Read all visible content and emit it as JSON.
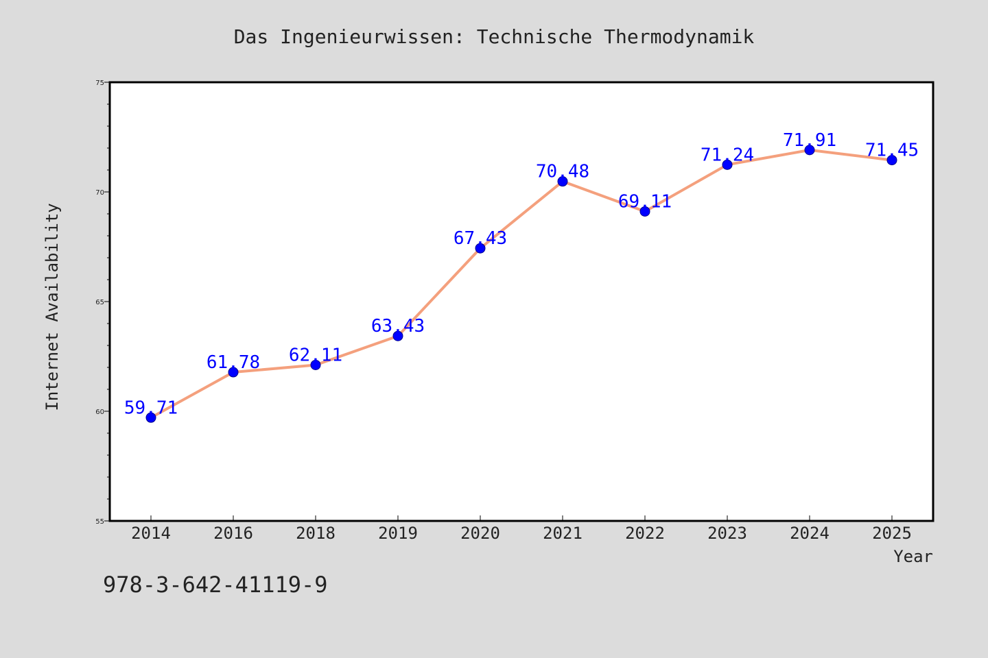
{
  "chart_data": {
    "type": "line",
    "title": "Das Ingenieurwissen: Technische Thermodynamik",
    "xlabel": "Year",
    "ylabel": "Internet Availability",
    "categories": [
      "2014",
      "2016",
      "2018",
      "2019",
      "2020",
      "2021",
      "2022",
      "2023",
      "2024",
      "2025"
    ],
    "values": [
      59.71,
      61.78,
      62.11,
      63.43,
      67.43,
      70.48,
      69.11,
      71.24,
      71.91,
      71.45
    ],
    "data_labels": [
      "59.71",
      "61.78",
      "62.11",
      "63.43",
      "67.43",
      "70.48",
      "69.11",
      "71.24",
      "71.91",
      "71.45"
    ],
    "ylim": [
      55,
      75
    ],
    "y_ticks": [
      "55",
      "60",
      "65",
      "70",
      "75"
    ],
    "grid": false,
    "legend": "none",
    "annotation": "978-3-642-41119-9",
    "colors": {
      "background": "#dcdcdc",
      "plot_background": "#ffffff",
      "line": "#f4a07d",
      "marker": "#0000ff",
      "data_label": "#0000ff",
      "text": "#222222"
    }
  }
}
